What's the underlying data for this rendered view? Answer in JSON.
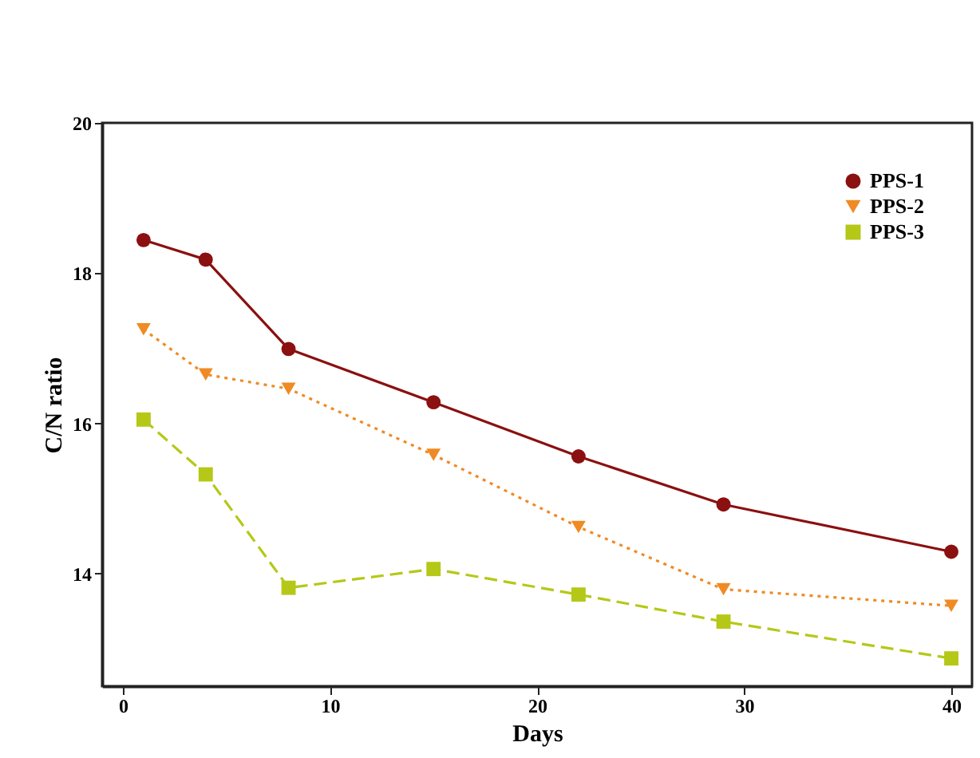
{
  "chart_data": {
    "type": "line",
    "xlabel": "Days",
    "ylabel": "C/N ratio",
    "x": [
      1,
      4,
      8,
      15,
      22,
      29,
      40
    ],
    "series": [
      {
        "name": "PPS-1",
        "color": "#8b1010",
        "marker": "circle",
        "line_style": "solid",
        "values": [
          18.44,
          18.18,
          16.99,
          16.28,
          15.56,
          14.92,
          14.29
        ]
      },
      {
        "name": "PPS-2",
        "color": "#f08a24",
        "marker": "triangle",
        "line_style": "dotted",
        "values": [
          17.25,
          16.65,
          16.46,
          15.58,
          14.62,
          13.79,
          13.57
        ]
      },
      {
        "name": "PPS-3",
        "color": "#b5c818",
        "marker": "square",
        "line_style": "dashed",
        "values": [
          16.05,
          15.32,
          13.81,
          14.06,
          13.72,
          13.36,
          12.87
        ]
      }
    ],
    "xlim": [
      -1,
      41
    ],
    "xticks": [
      0,
      10,
      20,
      30,
      40
    ],
    "ylim": [
      12.5,
      20
    ],
    "yticks": [
      14,
      16,
      18,
      20
    ],
    "grid": false,
    "legend": "top right"
  }
}
